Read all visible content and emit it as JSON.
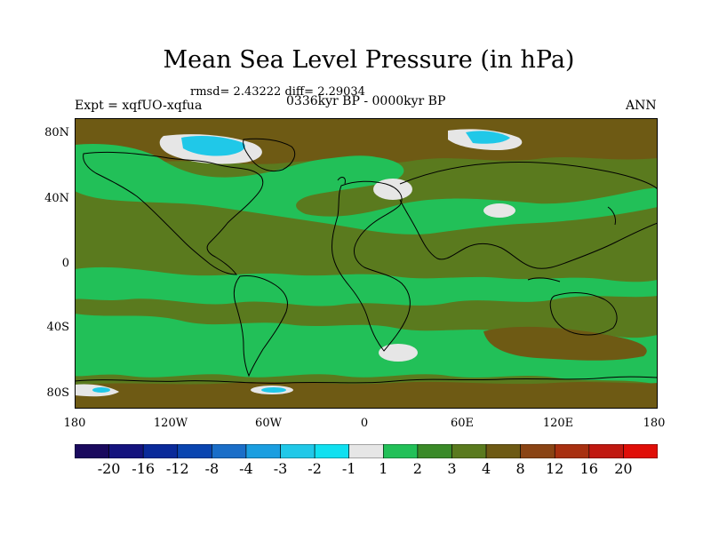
{
  "figure": {
    "title": "Mean Sea Level Pressure (in hPa)",
    "stats": "rmsd= 2.43222  diff= 2.29034",
    "left_label": "Expt = xqfUO-xqfua",
    "center_label": "0336kyr BP - 0000kyr BP",
    "right_label": "ANN"
  },
  "axes": {
    "lat_labels": [
      "80N",
      "40N",
      "0",
      "40S",
      "80S"
    ],
    "lon_labels": [
      "180",
      "120W",
      "60W",
      "0",
      "60E",
      "120E",
      "180"
    ]
  },
  "colorbar": {
    "levels": [
      "-20",
      "-16",
      "-12",
      "-8",
      "-4",
      "-3",
      "-2",
      "-1",
      "1",
      "2",
      "3",
      "4",
      "8",
      "12",
      "16",
      "20"
    ],
    "colors": [
      "#1a0a5e",
      "#14137e",
      "#0a2a9a",
      "#0a45b0",
      "#1a6ec8",
      "#1a9ee0",
      "#20c8e8",
      "#10e0f0",
      "#e6e6e6",
      "#22c058",
      "#3a8a28",
      "#5a7a1e",
      "#6e5a14",
      "#8a4414",
      "#a83010",
      "#c01810",
      "#e00e08"
    ]
  },
  "palette": {
    "ocean_green": "#22c058",
    "land_olive": "#5a7a1e",
    "mid_green": "#3a8a28",
    "brown": "#6e5a14",
    "light_gray": "#e6e6e6",
    "cyan": "#20c8e8"
  }
}
